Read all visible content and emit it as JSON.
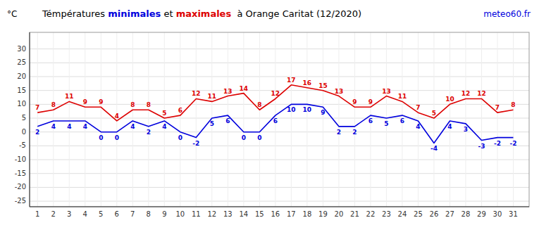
{
  "chart_data": {
    "type": "line",
    "title": "Témpératures minimales et maximales  à Orange Caritat (12/2020)",
    "y_label": "°C",
    "annotations": [
      {
        "text": "meteo60.fr",
        "color": "#0000dd"
      }
    ],
    "x": [
      1,
      2,
      3,
      4,
      5,
      6,
      7,
      8,
      9,
      10,
      11,
      12,
      13,
      14,
      15,
      16,
      17,
      18,
      19,
      20,
      21,
      22,
      23,
      24,
      25,
      26,
      27,
      28,
      29,
      30,
      31
    ],
    "series": [
      {
        "name": "minimales",
        "color": "#0000dd",
        "values": [
          2,
          4,
          4,
          4,
          0,
          0,
          4,
          2,
          4,
          0,
          -2,
          5,
          6,
          0,
          0,
          6,
          10,
          10,
          9,
          2,
          2,
          6,
          5,
          6,
          4,
          -4,
          4,
          3,
          -3,
          -2,
          -2
        ]
      },
      {
        "name": "maximales",
        "color": "#dd0000",
        "values": [
          7,
          8,
          11,
          9,
          9,
          4,
          8,
          8,
          5,
          6,
          12,
          11,
          13,
          14,
          8,
          12,
          17,
          16,
          15,
          13,
          9,
          9,
          13,
          11,
          7,
          5,
          10,
          12,
          12,
          7,
          8
        ]
      }
    ],
    "xlim": [
      0.5,
      32
    ],
    "xticks": [
      1,
      2,
      3,
      4,
      5,
      6,
      7,
      8,
      9,
      10,
      11,
      12,
      13,
      14,
      15,
      16,
      17,
      18,
      19,
      20,
      21,
      22,
      23,
      24,
      25,
      26,
      27,
      28,
      29,
      30,
      31
    ],
    "ylim": [
      -27,
      36
    ],
    "yticks": [
      -25,
      -20,
      -15,
      -10,
      -5,
      0,
      5,
      10,
      15,
      20,
      25,
      30
    ],
    "grid": true,
    "data_labels": true
  }
}
